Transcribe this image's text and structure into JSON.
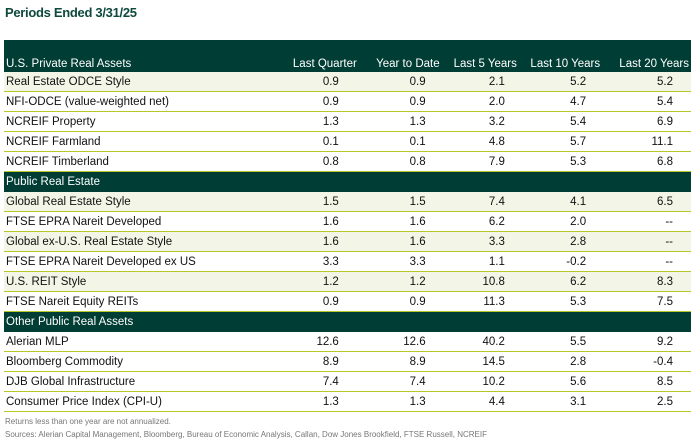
{
  "title": "Periods Ended 3/31/25",
  "columns": [
    "U.S. Private Real Assets",
    "Last Quarter",
    "Year to Date",
    "Last 5 Years",
    "Last 10 Years",
    "Last 20 Years"
  ],
  "sections": [
    {
      "name": "U.S. Private Real Assets",
      "rows": [
        {
          "label": "Real Estate ODCE Style",
          "values": [
            "0.9",
            "0.9",
            "2.1",
            "5.2",
            "5.2"
          ],
          "shaded": true
        },
        {
          "label": "NFI-ODCE (value-weighted net)",
          "values": [
            "0.9",
            "0.9",
            "2.0",
            "4.7",
            "5.4"
          ]
        },
        {
          "label": "NCREIF Property",
          "values": [
            "1.3",
            "1.3",
            "3.2",
            "5.4",
            "6.9"
          ]
        },
        {
          "label": "NCREIF Farmland",
          "values": [
            "0.1",
            "0.1",
            "4.8",
            "5.7",
            "11.1"
          ]
        },
        {
          "label": "NCREIF Timberland",
          "values": [
            "0.8",
            "0.8",
            "7.9",
            "5.3",
            "6.8"
          ]
        }
      ]
    },
    {
      "name": "Public Real Estate",
      "rows": [
        {
          "label": "Global Real Estate Style",
          "values": [
            "1.5",
            "1.5",
            "7.4",
            "4.1",
            "6.5"
          ],
          "shaded": true
        },
        {
          "label": "FTSE EPRA Nareit Developed",
          "values": [
            "1.6",
            "1.6",
            "6.2",
            "2.0",
            "--"
          ]
        },
        {
          "label": "Global ex-U.S. Real Estate Style",
          "values": [
            "1.6",
            "1.6",
            "3.3",
            "2.8",
            "--"
          ],
          "shaded": true
        },
        {
          "label": "FTSE EPRA Nareit Developed ex US",
          "values": [
            "3.3",
            "3.3",
            "1.1",
            "-0.2",
            "--"
          ]
        },
        {
          "label": "U.S. REIT Style",
          "values": [
            "1.2",
            "1.2",
            "10.8",
            "6.2",
            "8.3"
          ],
          "shaded": true
        },
        {
          "label": "FTSE Nareit Equity REITs",
          "values": [
            "0.9",
            "0.9",
            "11.3",
            "5.3",
            "7.5"
          ]
        }
      ]
    },
    {
      "name": "Other Public Real Assets",
      "rows": [
        {
          "label": "Alerian MLP",
          "values": [
            "12.6",
            "12.6",
            "40.2",
            "5.5",
            "9.2"
          ]
        },
        {
          "label": "Bloomberg Commodity",
          "values": [
            "8.9",
            "8.9",
            "14.5",
            "2.8",
            "-0.4"
          ]
        },
        {
          "label": "DJB Global Infrastructure",
          "values": [
            "7.4",
            "7.4",
            "10.2",
            "5.6",
            "8.5"
          ]
        },
        {
          "label": "Consumer Price Index (CPI-U)",
          "values": [
            "1.3",
            "1.3",
            "4.4",
            "3.1",
            "2.5"
          ]
        }
      ]
    }
  ],
  "footnotes": [
    "Returns less than one year are not annualized.",
    "Sources: Alerian Capital Management, Bloomberg, Bureau of Economic Analysis, Callan, Dow Jones Brookfield, FTSE Russell, NCREIF"
  ],
  "colors": {
    "header": "#003d34",
    "rule": "#b5c827",
    "shade": "#f3f5e6"
  }
}
